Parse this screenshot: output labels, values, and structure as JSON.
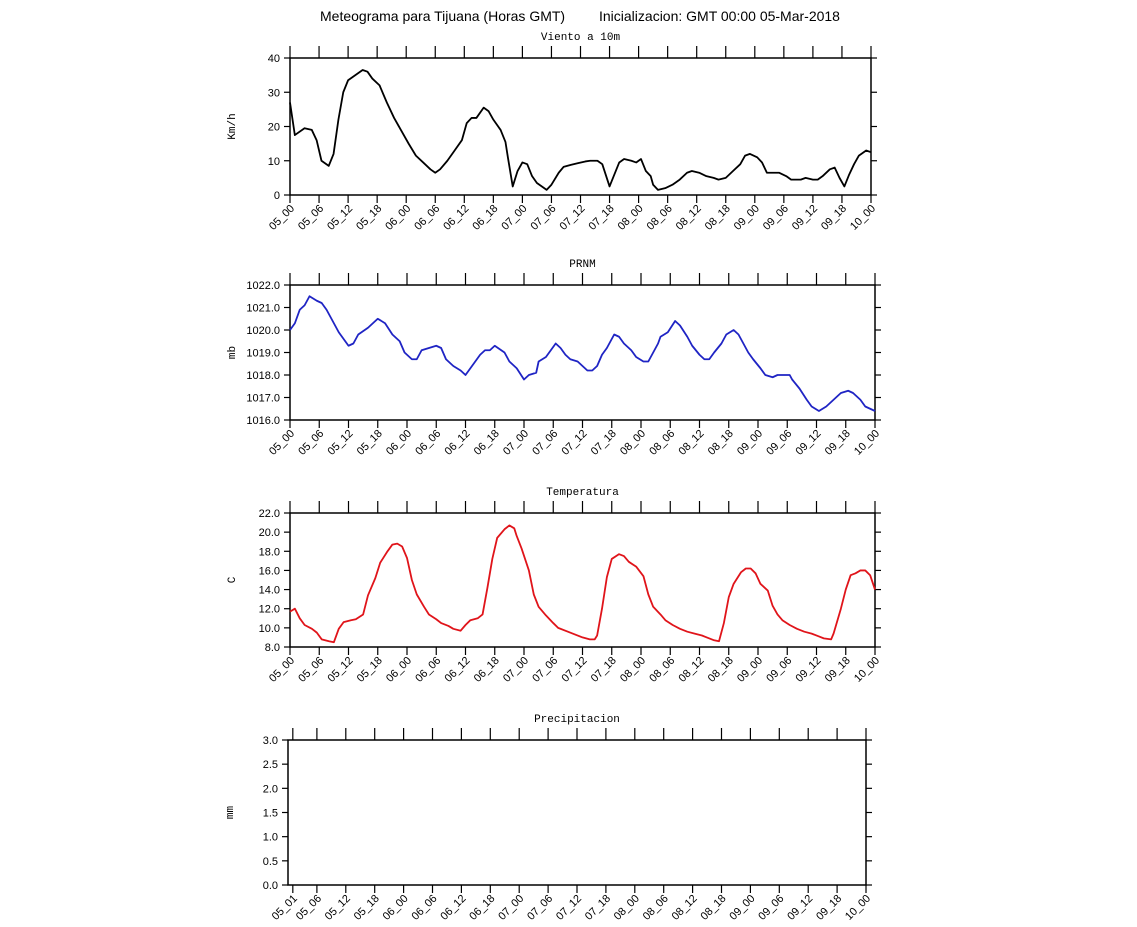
{
  "header": {
    "title": "Meteograma para Tijuana (Horas GMT)",
    "subtitle": "Inicializacion: GMT 00:00 05-Mar-2018"
  },
  "chart_data": [
    {
      "type": "line",
      "title": "Viento a 10m",
      "ylabel": "Km/h",
      "color": "#000000",
      "x": [
        0,
        1,
        3,
        4.5,
        5.5,
        6.5,
        8,
        9,
        10,
        11,
        12,
        13.5,
        15,
        16,
        17,
        18.5,
        20,
        21.5,
        22.5,
        24.5,
        26,
        27.5,
        29,
        30,
        31,
        32.5,
        34,
        35.5,
        36.5,
        37.5,
        38.5,
        40,
        41,
        42,
        43.5,
        44.5,
        45,
        46,
        47,
        48,
        49,
        50,
        51,
        52.5,
        53,
        54,
        55.5,
        56.5,
        58,
        59.5,
        61,
        62,
        63.5,
        64.5,
        66,
        67,
        68,
        69,
        70.5,
        71.5,
        72.5,
        73.5,
        74.5,
        75,
        76,
        77.5,
        79,
        80.5,
        82,
        83,
        84.5,
        86,
        87.5,
        88.5,
        90,
        91.5,
        93,
        94,
        95,
        96.5,
        97.5,
        98.5,
        100,
        101,
        102.5,
        103.5,
        105.5,
        106.5,
        108,
        109,
        110,
        111.5,
        112.5,
        113.5,
        114.5,
        115.5,
        116.5,
        117.5,
        119,
        120
      ],
      "values": [
        27,
        17.5,
        19.5,
        19,
        16,
        10,
        8.5,
        12,
        22,
        30,
        33.5,
        35,
        36.5,
        36,
        34,
        32,
        27,
        22.5,
        20,
        15,
        11.5,
        9.5,
        7.5,
        6.5,
        7.5,
        10,
        13,
        16,
        21,
        22.5,
        22.5,
        25.5,
        24.5,
        22,
        19,
        15.5,
        11,
        2.5,
        7,
        9.5,
        9,
        5.5,
        3.5,
        2,
        1.5,
        3,
        6.5,
        8.2,
        8.8,
        9.3,
        9.8,
        10,
        10,
        9,
        2.5,
        6,
        9.5,
        10.5,
        10,
        9.5,
        10.5,
        7,
        5.5,
        3,
        1.5,
        2,
        3,
        4.5,
        6.5,
        7,
        6.5,
        5.5,
        5,
        4.5,
        5,
        7,
        9,
        11.5,
        12,
        11,
        9.5,
        6.5,
        6.5,
        6.5,
        5.5,
        4.5,
        4.5,
        5,
        4.5,
        4.5,
        5.5,
        7.5,
        8,
        5,
        2.5,
        6,
        9,
        11.5,
        13,
        12.5
      ],
      "xlim": [
        0,
        120
      ],
      "xticks": [
        {
          "value": 0,
          "label": "05_00"
        },
        {
          "value": 6,
          "label": "05_06"
        },
        {
          "value": 12,
          "label": "05_12"
        },
        {
          "value": 18,
          "label": "05_18"
        },
        {
          "value": 24,
          "label": "06_00"
        },
        {
          "value": 30,
          "label": "06_06"
        },
        {
          "value": 36,
          "label": "06_12"
        },
        {
          "value": 42,
          "label": "06_18"
        },
        {
          "value": 48,
          "label": "07_00"
        },
        {
          "value": 54,
          "label": "07_06"
        },
        {
          "value": 60,
          "label": "07_12"
        },
        {
          "value": 66,
          "label": "07_18"
        },
        {
          "value": 72,
          "label": "08_00"
        },
        {
          "value": 78,
          "label": "08_06"
        },
        {
          "value": 84,
          "label": "08_12"
        },
        {
          "value": 90,
          "label": "08_18"
        },
        {
          "value": 96,
          "label": "09_00"
        },
        {
          "value": 102,
          "label": "09_06"
        },
        {
          "value": 108,
          "label": "09_12"
        },
        {
          "value": 114,
          "label": "09_18"
        },
        {
          "value": 120,
          "label": "10_00"
        }
      ],
      "ylim": [
        0,
        40
      ],
      "yticks": [
        0,
        10,
        20,
        30,
        40
      ]
    },
    {
      "type": "line",
      "title": "PRNM",
      "ylabel": "mb",
      "color": "#1f24c4",
      "x": [
        0,
        1,
        2,
        3,
        4,
        5.5,
        6.5,
        7.5,
        9,
        10,
        12,
        13,
        14,
        16,
        18,
        19.5,
        21,
        22.5,
        23.5,
        25,
        26,
        27,
        28.5,
        30,
        31,
        32,
        33.5,
        35,
        36,
        37,
        39,
        40,
        41,
        42,
        44,
        45,
        46.5,
        48,
        49,
        50.5,
        51,
        52.5,
        54.5,
        55.5,
        56.5,
        57.5,
        59,
        60,
        61,
        62,
        63,
        64,
        65,
        66.5,
        67.5,
        68.5,
        70,
        71,
        72.5,
        73.5,
        74.5,
        75.5,
        76,
        77.5,
        79,
        80,
        81.5,
        82.5,
        84,
        85,
        86,
        87,
        88.5,
        89.5,
        91,
        92,
        93,
        94,
        95,
        96.5,
        97.5,
        99,
        100,
        101,
        102.5,
        103,
        104.5,
        106,
        107,
        108.5,
        110,
        111,
        112,
        113,
        114.5,
        115.5,
        117,
        118,
        119,
        120
      ],
      "values": [
        1020.0,
        1020.3,
        1020.9,
        1021.1,
        1021.5,
        1021.3,
        1021.2,
        1020.9,
        1020.3,
        1019.9,
        1019.3,
        1019.4,
        1019.8,
        1020.1,
        1020.5,
        1020.3,
        1019.8,
        1019.5,
        1019.0,
        1018.7,
        1018.7,
        1019.1,
        1019.2,
        1019.3,
        1019.2,
        1018.7,
        1018.4,
        1018.2,
        1018.0,
        1018.3,
        1018.9,
        1019.1,
        1019.1,
        1019.3,
        1019.0,
        1018.6,
        1018.3,
        1017.8,
        1018.0,
        1018.1,
        1018.6,
        1018.8,
        1019.4,
        1019.2,
        1018.9,
        1018.7,
        1018.6,
        1018.4,
        1018.2,
        1018.2,
        1018.4,
        1018.9,
        1019.2,
        1019.8,
        1019.7,
        1019.4,
        1019.1,
        1018.8,
        1018.6,
        1018.6,
        1019.0,
        1019.4,
        1019.7,
        1019.9,
        1020.4,
        1020.2,
        1019.7,
        1019.3,
        1018.9,
        1018.7,
        1018.7,
        1019.0,
        1019.4,
        1019.8,
        1020.0,
        1019.8,
        1019.4,
        1019.0,
        1018.7,
        1018.3,
        1018.0,
        1017.9,
        1018.0,
        1018.0,
        1018.0,
        1017.8,
        1017.4,
        1016.9,
        1016.6,
        1016.4,
        1016.6,
        1016.8,
        1017.0,
        1017.2,
        1017.3,
        1017.2,
        1016.9,
        1016.6,
        1016.5,
        1016.4
      ],
      "xlim": [
        0,
        120
      ],
      "xticks": [
        {
          "value": 0,
          "label": "05_00"
        },
        {
          "value": 6,
          "label": "05_06"
        },
        {
          "value": 12,
          "label": "05_12"
        },
        {
          "value": 18,
          "label": "05_18"
        },
        {
          "value": 24,
          "label": "06_00"
        },
        {
          "value": 30,
          "label": "06_06"
        },
        {
          "value": 36,
          "label": "06_12"
        },
        {
          "value": 42,
          "label": "06_18"
        },
        {
          "value": 48,
          "label": "07_00"
        },
        {
          "value": 54,
          "label": "07_06"
        },
        {
          "value": 60,
          "label": "07_12"
        },
        {
          "value": 66,
          "label": "07_18"
        },
        {
          "value": 72,
          "label": "08_00"
        },
        {
          "value": 78,
          "label": "08_06"
        },
        {
          "value": 84,
          "label": "08_12"
        },
        {
          "value": 90,
          "label": "08_18"
        },
        {
          "value": 96,
          "label": "09_00"
        },
        {
          "value": 102,
          "label": "09_06"
        },
        {
          "value": 108,
          "label": "09_12"
        },
        {
          "value": 114,
          "label": "09_18"
        },
        {
          "value": 120,
          "label": "10_00"
        }
      ],
      "ylim": [
        1016,
        1022
      ],
      "yticks": [
        {
          "value": 1016,
          "label": "1016.0"
        },
        {
          "value": 1017,
          "label": "1017.0"
        },
        {
          "value": 1018,
          "label": "1018.0"
        },
        {
          "value": 1019,
          "label": "1019.0"
        },
        {
          "value": 1020,
          "label": "1020.0"
        },
        {
          "value": 1021,
          "label": "1021.0"
        },
        {
          "value": 1022,
          "label": "1022.0"
        }
      ]
    },
    {
      "type": "line",
      "title": "Temperatura",
      "ylabel": "C",
      "color": "#e0141a",
      "x": [
        0,
        1,
        2,
        3,
        4.5,
        5.5,
        6.5,
        8,
        9,
        10,
        11,
        12.5,
        13.5,
        15,
        16,
        17.5,
        18.5,
        20,
        21,
        22,
        23,
        24,
        25,
        26,
        27.5,
        28.5,
        30,
        31,
        32.5,
        33.5,
        35,
        36,
        37,
        38.5,
        39.5,
        40.5,
        41.5,
        42.5,
        44,
        45,
        46,
        46.5,
        47.5,
        49,
        50,
        51,
        52.5,
        54,
        55,
        57,
        58.5,
        60,
        61.5,
        62.5,
        63,
        64,
        65,
        66,
        67.5,
        68.5,
        69.5,
        71,
        72.5,
        73.5,
        74.5,
        76,
        77,
        78.5,
        80,
        81.5,
        83,
        84.5,
        85.5,
        87,
        88,
        89,
        90,
        91,
        92.5,
        93.5,
        94.5,
        95.5,
        96.5,
        98,
        99,
        100,
        101,
        102.5,
        104,
        105.5,
        107,
        108.5,
        109.5,
        111,
        111.5,
        113,
        114,
        115,
        116,
        117,
        118,
        119,
        120
      ],
      "values": [
        11.7,
        12.0,
        11.0,
        10.3,
        9.9,
        9.5,
        8.8,
        8.6,
        8.5,
        9.9,
        10.6,
        10.8,
        10.9,
        11.4,
        13.4,
        15.2,
        16.8,
        18.0,
        18.7,
        18.8,
        18.5,
        17.3,
        15.0,
        13.5,
        12.2,
        11.4,
        10.9,
        10.5,
        10.2,
        9.9,
        9.7,
        10.3,
        10.8,
        11.0,
        11.4,
        14.2,
        17.2,
        19.4,
        20.3,
        20.7,
        20.4,
        19.6,
        18.3,
        16.0,
        13.5,
        12.2,
        11.3,
        10.5,
        10.0,
        9.6,
        9.3,
        9.0,
        8.8,
        8.8,
        9.2,
        12.0,
        15.3,
        17.2,
        17.7,
        17.5,
        16.9,
        16.4,
        15.4,
        13.5,
        12.2,
        11.4,
        10.8,
        10.3,
        9.9,
        9.6,
        9.4,
        9.2,
        9.0,
        8.7,
        8.6,
        10.5,
        13.2,
        14.6,
        15.8,
        16.2,
        16.2,
        15.7,
        14.6,
        13.9,
        12.3,
        11.4,
        10.8,
        10.3,
        9.9,
        9.6,
        9.4,
        9.1,
        8.9,
        8.8,
        9.4,
        12.0,
        14.0,
        15.5,
        15.7,
        16.0,
        16.0,
        15.5,
        14.0
      ],
      "xlim": [
        0,
        120
      ],
      "xticks": [
        {
          "value": 0,
          "label": "05_00"
        },
        {
          "value": 6,
          "label": "05_06"
        },
        {
          "value": 12,
          "label": "05_12"
        },
        {
          "value": 18,
          "label": "05_18"
        },
        {
          "value": 24,
          "label": "06_00"
        },
        {
          "value": 30,
          "label": "06_06"
        },
        {
          "value": 36,
          "label": "06_12"
        },
        {
          "value": 42,
          "label": "06_18"
        },
        {
          "value": 48,
          "label": "07_00"
        },
        {
          "value": 54,
          "label": "07_06"
        },
        {
          "value": 60,
          "label": "07_12"
        },
        {
          "value": 66,
          "label": "07_18"
        },
        {
          "value": 72,
          "label": "08_00"
        },
        {
          "value": 78,
          "label": "08_06"
        },
        {
          "value": 84,
          "label": "08_12"
        },
        {
          "value": 90,
          "label": "08_18"
        },
        {
          "value": 96,
          "label": "09_00"
        },
        {
          "value": 102,
          "label": "09_06"
        },
        {
          "value": 108,
          "label": "09_12"
        },
        {
          "value": 114,
          "label": "09_18"
        },
        {
          "value": 120,
          "label": "10_00"
        }
      ],
      "ylim": [
        8,
        22
      ],
      "yticks": [
        {
          "value": 8,
          "label": "8.0"
        },
        {
          "value": 10,
          "label": "10.0"
        },
        {
          "value": 12,
          "label": "12.0"
        },
        {
          "value": 14,
          "label": "14.0"
        },
        {
          "value": 16,
          "label": "16.0"
        },
        {
          "value": 18,
          "label": "18.0"
        },
        {
          "value": 20,
          "label": "20.0"
        },
        {
          "value": 22,
          "label": "22.0"
        }
      ]
    },
    {
      "type": "line",
      "title": "Precipitacion",
      "ylabel": "mm",
      "xlim": [
        0,
        120
      ],
      "xticks": [
        {
          "value": 1,
          "label": "05_01"
        },
        {
          "value": 6,
          "label": "05_06"
        },
        {
          "value": 12,
          "label": "05_12"
        },
        {
          "value": 18,
          "label": "05_18"
        },
        {
          "value": 24,
          "label": "06_00"
        },
        {
          "value": 30,
          "label": "06_06"
        },
        {
          "value": 36,
          "label": "06_12"
        },
        {
          "value": 42,
          "label": "06_18"
        },
        {
          "value": 48,
          "label": "07_00"
        },
        {
          "value": 54,
          "label": "07_06"
        },
        {
          "value": 60,
          "label": "07_12"
        },
        {
          "value": 66,
          "label": "07_18"
        },
        {
          "value": 72,
          "label": "08_00"
        },
        {
          "value": 78,
          "label": "08_06"
        },
        {
          "value": 84,
          "label": "08_12"
        },
        {
          "value": 90,
          "label": "08_18"
        },
        {
          "value": 96,
          "label": "09_00"
        },
        {
          "value": 102,
          "label": "09_06"
        },
        {
          "value": 108,
          "label": "09_12"
        },
        {
          "value": 114,
          "label": "09_18"
        },
        {
          "value": 120,
          "label": "10_00"
        }
      ],
      "ylim": [
        0,
        3
      ],
      "yticks": [
        {
          "value": 0,
          "label": "0.0"
        },
        {
          "value": 0.5,
          "label": "0.5"
        },
        {
          "value": 1,
          "label": "1.0"
        },
        {
          "value": 1.5,
          "label": "1.5"
        },
        {
          "value": 2,
          "label": "2.0"
        },
        {
          "value": 2.5,
          "label": "2.5"
        },
        {
          "value": 3,
          "label": "3.0"
        }
      ]
    }
  ]
}
